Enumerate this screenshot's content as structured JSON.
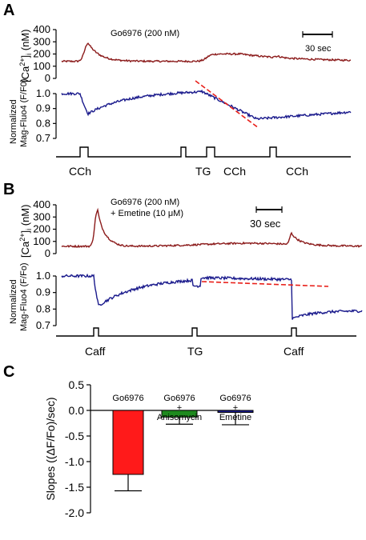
{
  "panels": {
    "A": {
      "letter": "A",
      "ca_label_main": "[Ca",
      "ca_label_sup": "2+",
      "ca_label_end": "]",
      "ca_label_sub": "i",
      "ca_label_unit": " (nM)",
      "drug_label": "Go6976 (200 nM)",
      "scale_bar_label": "30 sec",
      "mag_label_line1": "Normalized",
      "mag_label_line2": "Mag-Fluo4 (F/F0)",
      "stim_labels": [
        "CCh",
        "TG",
        "CCh",
        "CCh"
      ]
    },
    "B": {
      "letter": "B",
      "ca_label_main": "[Ca",
      "ca_label_sup": "2+",
      "ca_label_end": "]",
      "ca_label_sub": "i",
      "ca_label_unit": " (nM)",
      "drug_label_line1": "Go6976 (200 nM)",
      "drug_label_line2": "+ Emetine (10 μM)",
      "scale_bar_label": "30 sec",
      "mag_label_line1": "Normalized",
      "mag_label_line2": "Mag-Fluo4 (F/Fo)",
      "stim_labels": [
        "Caff",
        "TG",
        "Caff"
      ]
    },
    "C": {
      "letter": "C"
    }
  },
  "chart_data": [
    {
      "type": "line",
      "panel": "A",
      "ylabel": "[Ca2+]i (nM)",
      "ylim": [
        0,
        400
      ],
      "yticks": [
        0,
        100,
        200,
        300,
        400
      ],
      "series": [
        {
          "name": "[Ca2+]i",
          "color": "#8b1a1a"
        }
      ],
      "annotation": "Go6976 (200 nM)"
    },
    {
      "type": "line",
      "panel": "A",
      "ylabel": "Normalized Mag-Fluo4 (F/F0)",
      "ylim": [
        0.7,
        1.0
      ],
      "yticks": [
        0.7,
        0.8,
        0.9,
        1.0
      ],
      "series": [
        {
          "name": "Mag-Fluo4",
          "color": "#1a1a8c"
        }
      ],
      "fit_line_color": "#e8201a",
      "stimuli": [
        "CCh",
        "TG",
        "CCh",
        "CCh"
      ]
    },
    {
      "type": "line",
      "panel": "B",
      "ylabel": "[Ca2+]i (nM)",
      "ylim": [
        0,
        400
      ],
      "yticks": [
        0,
        100,
        200,
        300,
        400
      ],
      "series": [
        {
          "name": "[Ca2+]i",
          "color": "#8b1a1a"
        }
      ],
      "annotation": "Go6976 (200 nM) + Emetine (10 μM)"
    },
    {
      "type": "line",
      "panel": "B",
      "ylabel": "Normalized Mag-Fluo4 (F/Fo)",
      "ylim": [
        0.7,
        1.0
      ],
      "yticks": [
        0.7,
        0.8,
        0.9,
        1.0
      ],
      "series": [
        {
          "name": "Mag-Fluo4",
          "color": "#1a1a8c"
        }
      ],
      "fit_line_color": "#e8201a",
      "stimuli": [
        "Caff",
        "TG",
        "Caff"
      ]
    },
    {
      "type": "bar",
      "panel": "C",
      "ylabel": "Slopes ((ΔF/Fo)/sec)",
      "ylim": [
        -2.0,
        0.5
      ],
      "yticks": [
        -2.0,
        -1.5,
        -1.0,
        -0.5,
        0.0,
        0.5
      ],
      "ytick_labels": [
        "-2.0",
        "-1.5",
        "-1.0",
        "-0.5",
        "0.0",
        "0.5"
      ],
      "categories": [
        [
          "Go6976"
        ],
        [
          "Go6976",
          "+",
          "Anisomycin"
        ],
        [
          "Go6976",
          "+",
          "Emetine"
        ]
      ],
      "values": [
        -1.25,
        -0.13,
        -0.04
      ],
      "errors": [
        0.32,
        0.14,
        0.24
      ],
      "colors": [
        "#ff1a1a",
        "#1e8a1e",
        "#1a1a8c"
      ]
    }
  ]
}
